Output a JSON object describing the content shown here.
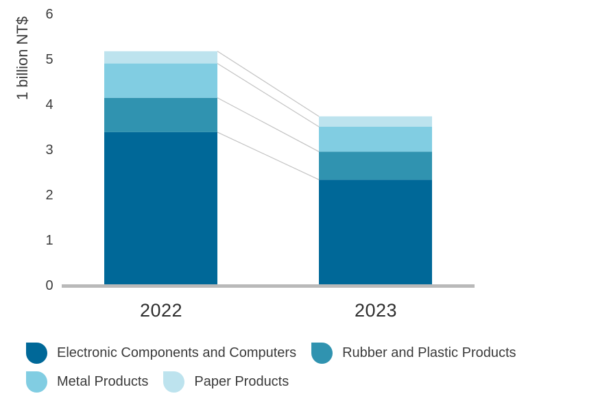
{
  "chart_data": {
    "type": "bar",
    "stacked": true,
    "categories": [
      "2022",
      "2023"
    ],
    "ylabel": "1 billion NT$",
    "ylim": [
      0,
      6
    ],
    "yticks": [
      "0",
      "1",
      "2",
      "3",
      "4",
      "5",
      "6"
    ],
    "grid": false,
    "legend_position": "bottom",
    "connector_lines": true,
    "series": [
      {
        "name": "Electronic Components and Computers",
        "values": [
          3.38,
          2.33
        ],
        "color": "#006898"
      },
      {
        "name": "Rubber and Plastic Products",
        "values": [
          0.76,
          0.62
        ],
        "color": "#3093b0"
      },
      {
        "name": "Metal Products",
        "values": [
          0.76,
          0.55
        ],
        "color": "#81cde2"
      },
      {
        "name": "Paper Products",
        "values": [
          0.27,
          0.23
        ],
        "color": "#bde3ee"
      }
    ]
  }
}
